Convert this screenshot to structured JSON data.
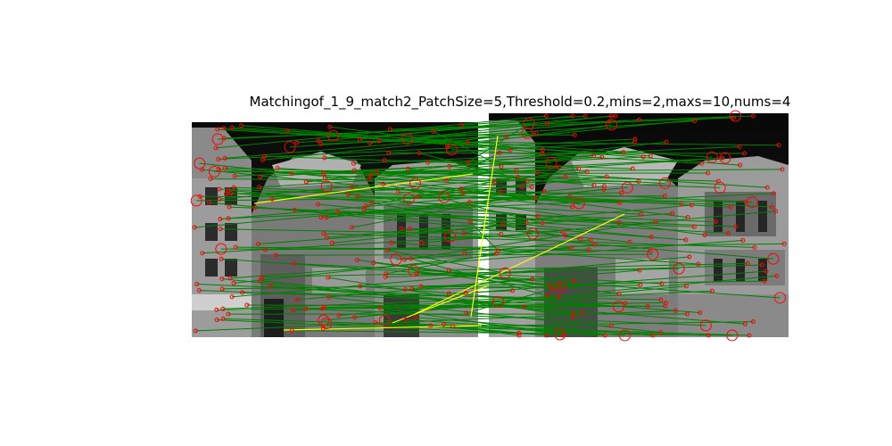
{
  "figure": {
    "title": "Matchingof_1_9_match2_PatchSize=5,Threshold=0.2,mins=2,maxs=10,nums=4"
  },
  "chart_data": {
    "type": "feature-matching",
    "title": "Matchingof_1_9_match2_PatchSize=5,Threshold=0.2,mins=2,maxs=10,nums=4",
    "panels": [
      "left-image",
      "right-image"
    ],
    "colors": {
      "match_line": "#008000",
      "outlier_line": "#ffff00",
      "keypoint": "#ff0000",
      "image_dark": "#0b0b0b",
      "image_mid": "#6e6e6e",
      "image_light": "#bdbdbd"
    }
  }
}
